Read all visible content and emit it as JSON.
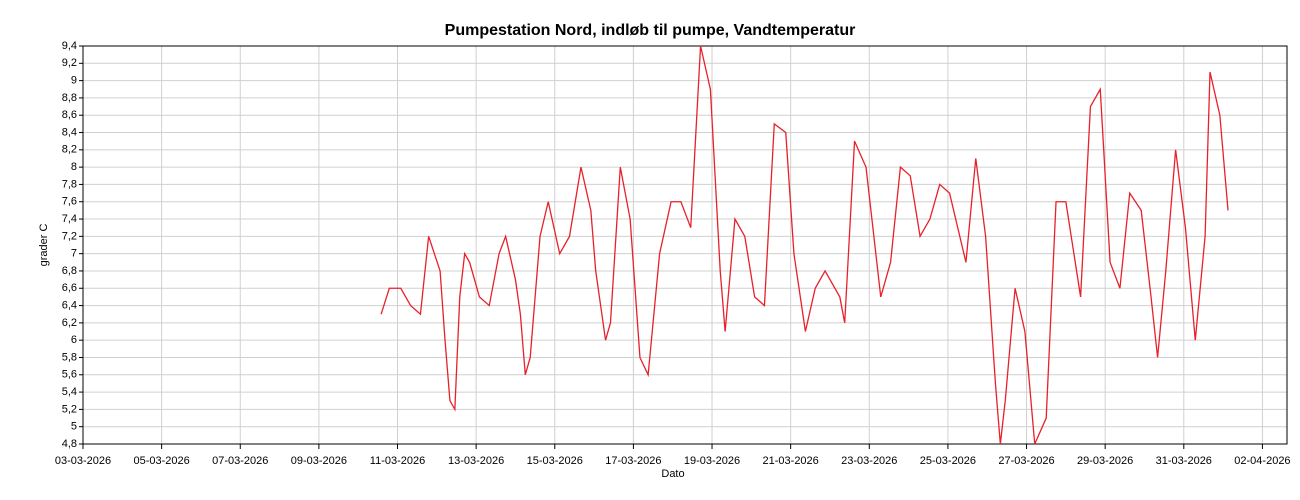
{
  "chart_data": {
    "type": "line",
    "title": "Pumpestation Nord, indløb til pumpe, Vandtemperatur",
    "x_label": "Dato",
    "y_label": "grader C",
    "xlim": [
      "2026-03-03T00:00",
      "2026-04-02T15:00"
    ],
    "xticks": [
      {
        "value": "2026-03-03T00:00",
        "label": "03-03-2026"
      },
      {
        "value": "2026-03-05T00:00",
        "label": "05-03-2026"
      },
      {
        "value": "2026-03-07T00:00",
        "label": "07-03-2026"
      },
      {
        "value": "2026-03-09T00:00",
        "label": "09-03-2026"
      },
      {
        "value": "2026-03-11T00:00",
        "label": "11-03-2026"
      },
      {
        "value": "2026-03-13T00:00",
        "label": "13-03-2026"
      },
      {
        "value": "2026-03-15T00:00",
        "label": "15-03-2026"
      },
      {
        "value": "2026-03-17T00:00",
        "label": "17-03-2026"
      },
      {
        "value": "2026-03-19T00:00",
        "label": "19-03-2026"
      },
      {
        "value": "2026-03-21T00:00",
        "label": "21-03-2026"
      },
      {
        "value": "2026-03-23T00:00",
        "label": "23-03-2026"
      },
      {
        "value": "2026-03-25T00:00",
        "label": "25-03-2026"
      },
      {
        "value": "2026-03-27T00:00",
        "label": "27-03-2026"
      },
      {
        "value": "2026-03-29T00:00",
        "label": "29-03-2026"
      },
      {
        "value": "2026-03-31T00:00",
        "label": "31-03-2026"
      },
      {
        "value": "2026-04-02T00:00",
        "label": "02-04-2026"
      }
    ],
    "ylim": [
      4.8,
      9.4
    ],
    "yticks": [
      {
        "value": 4.8,
        "label": "4,8"
      },
      {
        "value": 5,
        "label": "5"
      },
      {
        "value": 5.2,
        "label": "5,2"
      },
      {
        "value": 5.4,
        "label": "5,4"
      },
      {
        "value": 5.6,
        "label": "5,6"
      },
      {
        "value": 5.8,
        "label": "5,8"
      },
      {
        "value": 6,
        "label": "6"
      },
      {
        "value": 6.2,
        "label": "6,2"
      },
      {
        "value": 6.4,
        "label": "6,4"
      },
      {
        "value": 6.6,
        "label": "6,6"
      },
      {
        "value": 6.8,
        "label": "6,8"
      },
      {
        "value": 7,
        "label": "7"
      },
      {
        "value": 7.2,
        "label": "7,2"
      },
      {
        "value": 7.4,
        "label": "7,4"
      },
      {
        "value": 7.6,
        "label": "7,6"
      },
      {
        "value": 7.8,
        "label": "7,8"
      },
      {
        "value": 8,
        "label": "8"
      },
      {
        "value": 8.2,
        "label": "8,2"
      },
      {
        "value": 8.4,
        "label": "8,4"
      },
      {
        "value": 8.6,
        "label": "8,6"
      },
      {
        "value": 8.8,
        "label": "8,8"
      },
      {
        "value": 9,
        "label": "9"
      },
      {
        "value": 9.2,
        "label": "9,2"
      },
      {
        "value": 9.4,
        "label": "9,4"
      }
    ],
    "grid": true,
    "color": "#e8202a",
    "x": [
      "2026-03-10T14:00",
      "2026-03-10T19:00",
      "2026-03-11T02:00",
      "2026-03-11T08:00",
      "2026-03-11T14:00",
      "2026-03-11T19:00",
      "2026-03-12T02:00",
      "2026-03-12T05:00",
      "2026-03-12T08:00",
      "2026-03-12T11:00",
      "2026-03-12T14:00",
      "2026-03-12T17:00",
      "2026-03-12T20:00",
      "2026-03-13T02:00",
      "2026-03-13T08:00",
      "2026-03-13T14:00",
      "2026-03-13T18:00",
      "2026-03-14T00:00",
      "2026-03-14T03:00",
      "2026-03-14T06:00",
      "2026-03-14T09:00",
      "2026-03-14T15:00",
      "2026-03-14T20:00",
      "2026-03-15T03:00",
      "2026-03-15T09:00",
      "2026-03-15T16:00",
      "2026-03-15T22:00",
      "2026-03-16T01:00",
      "2026-03-16T07:00",
      "2026-03-16T10:00",
      "2026-03-16T16:00",
      "2026-03-16T22:00",
      "2026-03-17T04:00",
      "2026-03-17T09:00",
      "2026-03-17T16:00",
      "2026-03-17T23:00",
      "2026-03-18T05:00",
      "2026-03-18T11:00",
      "2026-03-18T17:00",
      "2026-03-18T23:00",
      "2026-03-19T05:00",
      "2026-03-19T08:00",
      "2026-03-19T14:00",
      "2026-03-19T20:00",
      "2026-03-20T02:00",
      "2026-03-20T08:00",
      "2026-03-20T14:00",
      "2026-03-20T21:00",
      "2026-03-21T02:00",
      "2026-03-21T09:00",
      "2026-03-21T15:00",
      "2026-03-21T21:00",
      "2026-03-22T06:00",
      "2026-03-22T09:00",
      "2026-03-22T15:00",
      "2026-03-22T22:00",
      "2026-03-23T07:00",
      "2026-03-23T13:00",
      "2026-03-23T19:00",
      "2026-03-24T01:00",
      "2026-03-24T07:00",
      "2026-03-24T13:00",
      "2026-03-24T19:00",
      "2026-03-25T01:00",
      "2026-03-25T11:00",
      "2026-03-25T17:00",
      "2026-03-25T23:00",
      "2026-03-26T05:00",
      "2026-03-26T08:00",
      "2026-03-26T11:00",
      "2026-03-26T17:00",
      "2026-03-26T23:00",
      "2026-03-27T05:00",
      "2026-03-27T12:00",
      "2026-03-27T18:00",
      "2026-03-28T00:00",
      "2026-03-28T09:00",
      "2026-03-28T15:00",
      "2026-03-28T21:00",
      "2026-03-29T03:00",
      "2026-03-29T09:00",
      "2026-03-29T15:00",
      "2026-03-29T22:00",
      "2026-03-30T04:00",
      "2026-03-30T08:00",
      "2026-03-30T13:00",
      "2026-03-30T19:00",
      "2026-03-31T01:00",
      "2026-03-31T07:00",
      "2026-03-31T13:00",
      "2026-03-31T16:00",
      "2026-03-31T22:00",
      "2026-04-01T03:00"
    ],
    "values": [
      6.3,
      6.6,
      6.6,
      6.4,
      6.3,
      7.2,
      6.8,
      6.0,
      5.3,
      5.2,
      6.5,
      7.0,
      6.9,
      6.5,
      6.4,
      7.0,
      7.2,
      6.7,
      6.3,
      5.6,
      5.8,
      7.2,
      7.6,
      7.0,
      7.2,
      8.0,
      7.5,
      6.8,
      6.0,
      6.2,
      8.0,
      7.4,
      5.8,
      5.6,
      7.0,
      7.6,
      7.6,
      7.3,
      9.4,
      8.9,
      6.8,
      6.1,
      7.4,
      7.2,
      6.5,
      6.4,
      8.5,
      8.4,
      7.0,
      6.1,
      6.6,
      6.8,
      6.5,
      6.2,
      8.3,
      8.0,
      6.5,
      6.9,
      8.0,
      7.9,
      7.2,
      7.4,
      7.8,
      7.7,
      6.9,
      8.1,
      7.2,
      5.5,
      4.8,
      5.3,
      6.6,
      6.1,
      4.8,
      5.1,
      7.6,
      7.6,
      6.5,
      8.7,
      8.9,
      6.9,
      6.6,
      7.7,
      7.5,
      6.5,
      5.8,
      6.8,
      8.2,
      7.3,
      6.0,
      7.2,
      9.1,
      8.6,
      7.5
    ]
  }
}
